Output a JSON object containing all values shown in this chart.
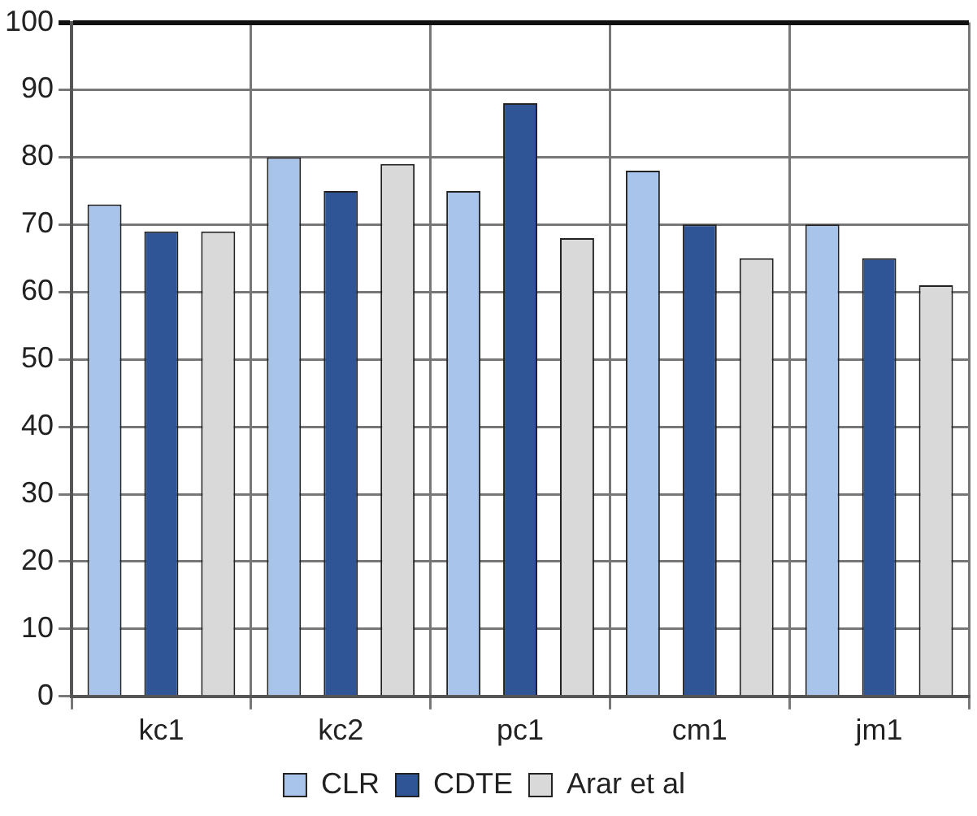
{
  "chart_data": {
    "type": "bar",
    "categories": [
      "kc1",
      "kc2",
      "pc1",
      "cm1",
      "jm1"
    ],
    "series": [
      {
        "name": "CLR",
        "color": "#a9c4eb",
        "values": [
          73,
          80,
          75,
          78,
          70
        ]
      },
      {
        "name": "CDTE",
        "color": "#2f5597",
        "values": [
          69,
          75,
          88,
          70,
          65
        ]
      },
      {
        "name": "Arar et al",
        "color": "#d9d9d9",
        "values": [
          69,
          79,
          68,
          65,
          61
        ]
      }
    ],
    "ylim": [
      0,
      100
    ],
    "yticks": [
      0,
      10,
      20,
      30,
      40,
      50,
      60,
      70,
      80,
      90,
      100
    ],
    "grid": true,
    "legend": "bottom"
  }
}
